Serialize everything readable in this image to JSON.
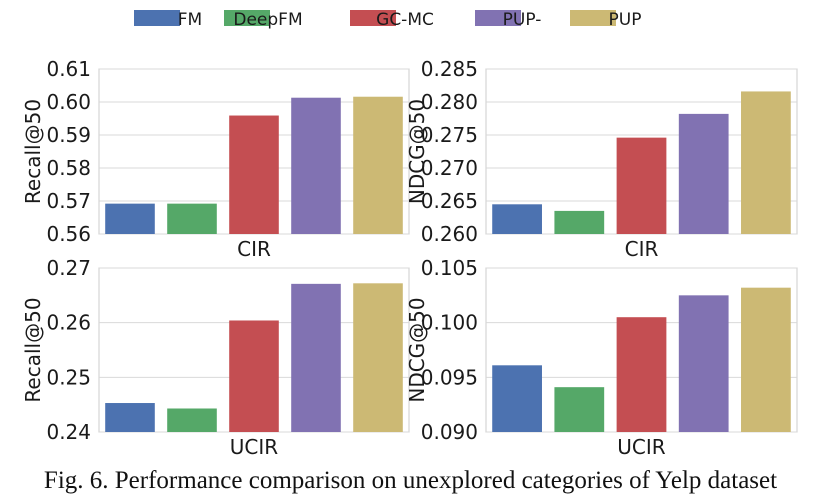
{
  "legend": [
    "FM",
    "DeepFM",
    "GC-MC",
    "PUP-",
    "PUP"
  ],
  "colors": [
    "#4c72b0",
    "#55a868",
    "#c44e52",
    "#8172b2",
    "#ccb974"
  ],
  "caption": "Fig. 6.  Performance comparison on unexplored categories of Yelp dataset",
  "chart_data": [
    {
      "type": "bar",
      "categories": [
        "FM",
        "DeepFM",
        "GC-MC",
        "PUP-",
        "PUP"
      ],
      "values": [
        0.5692,
        0.5692,
        0.5959,
        0.6013,
        0.6016
      ],
      "xlabel": "CIR",
      "ylabel": "Recall@50",
      "ylim": [
        0.56,
        0.61
      ],
      "yticks": [
        "0.56",
        "0.57",
        "0.58",
        "0.59",
        "0.60",
        "0.61"
      ],
      "grid": true
    },
    {
      "type": "bar",
      "categories": [
        "FM",
        "DeepFM",
        "GC-MC",
        "PUP-",
        "PUP"
      ],
      "values": [
        0.2645,
        0.2635,
        0.2746,
        0.2782,
        0.2816
      ],
      "xlabel": "CIR",
      "ylabel": "NDCG@50",
      "ylim": [
        0.26,
        0.285
      ],
      "yticks": [
        "0.260",
        "0.265",
        "0.270",
        "0.275",
        "0.280",
        "0.285"
      ],
      "grid": true
    },
    {
      "type": "bar",
      "categories": [
        "FM",
        "DeepFM",
        "GC-MC",
        "PUP-",
        "PUP"
      ],
      "values": [
        0.2453,
        0.2443,
        0.2604,
        0.2671,
        0.2672
      ],
      "xlabel": "UCIR",
      "ylabel": "Recall@50",
      "ylim": [
        0.24,
        0.27
      ],
      "yticks": [
        "0.24",
        "0.25",
        "0.26",
        "0.27"
      ],
      "grid": true
    },
    {
      "type": "bar",
      "categories": [
        "FM",
        "DeepFM",
        "GC-MC",
        "PUP-",
        "PUP"
      ],
      "values": [
        0.0961,
        0.0941,
        0.1005,
        0.1025,
        0.1032
      ],
      "xlabel": "UCIR",
      "ylabel": "NDCG@50",
      "ylim": [
        0.09,
        0.105
      ],
      "yticks": [
        "0.090",
        "0.095",
        "0.100",
        "0.105"
      ],
      "grid": true
    }
  ]
}
